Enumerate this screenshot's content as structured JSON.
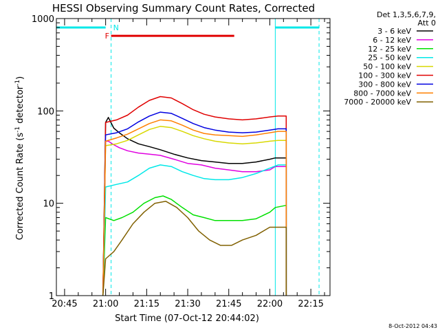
{
  "chart_data": {
    "type": "line",
    "title": "HESSI Observing Summary Count Rates, Corrected",
    "ylabel_parts": [
      "Corrected Count Rate (s",
      "-1",
      " detector",
      "-1",
      ")"
    ],
    "xlabel": "Start Time (07-Oct-12 20:44:02)",
    "yscale": "log",
    "ylim": [
      1,
      1000
    ],
    "xlim": [
      "20:42",
      "22:22"
    ],
    "grid": false,
    "legend_position": "right",
    "yticks": [
      {
        "value": 1,
        "label": "1"
      },
      {
        "value": 10,
        "label": "10"
      },
      {
        "value": 100,
        "label": "100"
      },
      {
        "value": 1000,
        "label": "1000"
      }
    ],
    "xticks": [
      {
        "value": "20:45",
        "label": "20:45"
      },
      {
        "value": "21:00",
        "label": "21:00"
      },
      {
        "value": "21:15",
        "label": "21:15"
      },
      {
        "value": "21:30",
        "label": "21:30"
      },
      {
        "value": "21:45",
        "label": "21:45"
      },
      {
        "value": "22:00",
        "label": "22:00"
      },
      {
        "value": "22:15",
        "label": "22:15"
      }
    ],
    "legend_header": [
      "Det 1,3,5,6,7,9,",
      "Att 0"
    ],
    "footer_date": "8-Oct-2012 04:43",
    "data_start": "20:59",
    "data_end": "22:06",
    "series": [
      {
        "name": "3 - 6 keV",
        "color": "#000000",
        "points": [
          [
            "21:00",
            75
          ],
          [
            "21:01",
            85
          ],
          [
            "21:03",
            65
          ],
          [
            "21:05",
            58
          ],
          [
            "21:08",
            50
          ],
          [
            "21:12",
            44
          ],
          [
            "21:16",
            41
          ],
          [
            "21:20",
            38
          ],
          [
            "21:25",
            34
          ],
          [
            "21:30",
            31
          ],
          [
            "21:35",
            29
          ],
          [
            "21:40",
            28
          ],
          [
            "21:45",
            27
          ],
          [
            "21:50",
            27
          ],
          [
            "21:55",
            28
          ],
          [
            "22:00",
            30
          ],
          [
            "22:02",
            31
          ],
          [
            "22:06",
            31
          ]
        ]
      },
      {
        "name": "6 - 12 keV",
        "color": "#e000e0",
        "points": [
          [
            "21:00",
            47
          ],
          [
            "21:01",
            47
          ],
          [
            "21:03",
            43
          ],
          [
            "21:05",
            40
          ],
          [
            "21:08",
            37
          ],
          [
            "21:12",
            35
          ],
          [
            "21:16",
            34
          ],
          [
            "21:20",
            33
          ],
          [
            "21:25",
            30
          ],
          [
            "21:30",
            27
          ],
          [
            "21:35",
            26
          ],
          [
            "21:40",
            24
          ],
          [
            "21:45",
            23
          ],
          [
            "21:50",
            22
          ],
          [
            "21:55",
            22
          ],
          [
            "22:00",
            23
          ],
          [
            "22:02",
            25
          ],
          [
            "22:06",
            25
          ]
        ]
      },
      {
        "name": "12 - 25 keV",
        "color": "#00e000",
        "points": [
          [
            "21:00",
            7
          ],
          [
            "21:03",
            6.5
          ],
          [
            "21:06",
            7
          ],
          [
            "21:10",
            8
          ],
          [
            "21:14",
            10
          ],
          [
            "21:18",
            11.5
          ],
          [
            "21:21",
            12
          ],
          [
            "21:24",
            11
          ],
          [
            "21:28",
            9
          ],
          [
            "21:32",
            7.5
          ],
          [
            "21:36",
            7
          ],
          [
            "21:40",
            6.5
          ],
          [
            "21:45",
            6.5
          ],
          [
            "21:50",
            6.5
          ],
          [
            "21:55",
            6.8
          ],
          [
            "22:00",
            8
          ],
          [
            "22:02",
            9
          ],
          [
            "22:06",
            9.5
          ]
        ]
      },
      {
        "name": "25 - 50 keV",
        "color": "#00e8e8",
        "points": [
          [
            "21:00",
            15
          ],
          [
            "21:04",
            16
          ],
          [
            "21:08",
            17
          ],
          [
            "21:12",
            20
          ],
          [
            "21:16",
            24
          ],
          [
            "21:20",
            26
          ],
          [
            "21:24",
            25
          ],
          [
            "21:28",
            22
          ],
          [
            "21:32",
            20
          ],
          [
            "21:36",
            18.5
          ],
          [
            "21:40",
            18
          ],
          [
            "21:45",
            18
          ],
          [
            "21:50",
            19
          ],
          [
            "21:55",
            21
          ],
          [
            "22:00",
            24
          ],
          [
            "22:03",
            26
          ],
          [
            "22:06",
            26
          ]
        ]
      },
      {
        "name": "50 - 100 keV",
        "color": "#d8d800",
        "points": [
          [
            "21:00",
            42
          ],
          [
            "21:04",
            44
          ],
          [
            "21:08",
            48
          ],
          [
            "21:12",
            55
          ],
          [
            "21:16",
            63
          ],
          [
            "21:20",
            68
          ],
          [
            "21:24",
            66
          ],
          [
            "21:28",
            60
          ],
          [
            "21:32",
            54
          ],
          [
            "21:36",
            50
          ],
          [
            "21:40",
            47
          ],
          [
            "21:45",
            45
          ],
          [
            "21:50",
            44
          ],
          [
            "21:55",
            45
          ],
          [
            "22:00",
            47
          ],
          [
            "22:03",
            48
          ],
          [
            "22:06",
            48
          ]
        ]
      },
      {
        "name": "100 - 300 keV",
        "color": "#e00000",
        "points": [
          [
            "21:00",
            75
          ],
          [
            "21:04",
            80
          ],
          [
            "21:08",
            90
          ],
          [
            "21:12",
            110
          ],
          [
            "21:16",
            130
          ],
          [
            "21:20",
            143
          ],
          [
            "21:24",
            138
          ],
          [
            "21:28",
            120
          ],
          [
            "21:32",
            103
          ],
          [
            "21:36",
            92
          ],
          [
            "21:40",
            86
          ],
          [
            "21:45",
            82
          ],
          [
            "21:50",
            80
          ],
          [
            "21:55",
            82
          ],
          [
            "22:00",
            86
          ],
          [
            "22:03",
            88
          ],
          [
            "22:06",
            88
          ]
        ]
      },
      {
        "name": "300 - 800 keV",
        "color": "#0000e0",
        "points": [
          [
            "21:00",
            55
          ],
          [
            "21:04",
            58
          ],
          [
            "21:08",
            64
          ],
          [
            "21:12",
            76
          ],
          [
            "21:16",
            88
          ],
          [
            "21:20",
            97
          ],
          [
            "21:24",
            94
          ],
          [
            "21:28",
            83
          ],
          [
            "21:32",
            73
          ],
          [
            "21:36",
            66
          ],
          [
            "21:40",
            62
          ],
          [
            "21:45",
            59
          ],
          [
            "21:50",
            58
          ],
          [
            "21:55",
            59
          ],
          [
            "22:00",
            62
          ],
          [
            "22:03",
            64
          ],
          [
            "22:06",
            64
          ]
        ]
      },
      {
        "name": "800 - 7000 keV",
        "color": "#ff8000",
        "points": [
          [
            "21:00",
            47
          ],
          [
            "21:04",
            51
          ],
          [
            "21:08",
            56
          ],
          [
            "21:12",
            64
          ],
          [
            "21:16",
            73
          ],
          [
            "21:20",
            80
          ],
          [
            "21:24",
            78
          ],
          [
            "21:28",
            70
          ],
          [
            "21:32",
            62
          ],
          [
            "21:36",
            57
          ],
          [
            "21:40",
            55
          ],
          [
            "21:45",
            54
          ],
          [
            "21:50",
            53
          ],
          [
            "21:55",
            55
          ],
          [
            "22:00",
            58
          ],
          [
            "22:03",
            60
          ],
          [
            "22:06",
            60
          ]
        ]
      },
      {
        "name": "7000 - 20000 keV",
        "color": "#806000",
        "points": [
          [
            "21:00",
            2.5
          ],
          [
            "21:03",
            3
          ],
          [
            "21:06",
            4
          ],
          [
            "21:10",
            6
          ],
          [
            "21:14",
            8
          ],
          [
            "21:18",
            10
          ],
          [
            "21:22",
            10.5
          ],
          [
            "21:26",
            9
          ],
          [
            "21:30",
            7
          ],
          [
            "21:34",
            5
          ],
          [
            "21:38",
            4
          ],
          [
            "21:42",
            3.5
          ],
          [
            "21:46",
            3.5
          ],
          [
            "21:50",
            4
          ],
          [
            "21:55",
            4.5
          ],
          [
            "22:00",
            5.5
          ],
          [
            "22:03",
            5.5
          ],
          [
            "22:06",
            5.5
          ]
        ]
      }
    ],
    "annotations": {
      "night_bars": [
        [
          "20:42",
          "21:00"
        ],
        [
          "22:02",
          "22:18"
        ]
      ],
      "night_bar_color": "#00e8e8",
      "night_bar_value": 800,
      "flare_bar": {
        "label": "F",
        "start": "21:02",
        "end": "21:47",
        "color": "#e00000",
        "value": 650
      },
      "saa_label": "N",
      "saa_at": "21:02",
      "dashed_lines": [
        "21:02",
        "22:18"
      ],
      "solid_line": "22:02"
    }
  }
}
